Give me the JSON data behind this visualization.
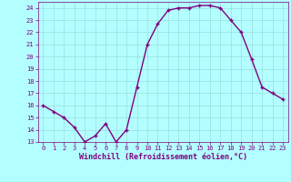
{
  "x": [
    0,
    1,
    2,
    3,
    4,
    5,
    6,
    7,
    8,
    9,
    10,
    11,
    12,
    13,
    14,
    15,
    16,
    17,
    18,
    19,
    20,
    21,
    22,
    23
  ],
  "y": [
    16,
    15.5,
    15,
    14.2,
    13,
    13.5,
    14.5,
    13,
    14,
    17.5,
    21,
    22.7,
    23.8,
    24,
    24,
    24.2,
    24.2,
    24,
    23,
    22,
    19.8,
    17.5,
    17,
    16.5
  ],
  "line_color": "#800080",
  "marker": "+",
  "marker_color": "#800080",
  "bg_color": "#b3ffff",
  "grid_color": "#99dddd",
  "xlabel": "Windchill (Refroidissement éolien,°C)",
  "ylim": [
    13,
    24.5
  ],
  "xlim": [
    -0.5,
    23.5
  ],
  "yticks": [
    13,
    14,
    15,
    16,
    17,
    18,
    19,
    20,
    21,
    22,
    23,
    24
  ],
  "xticks": [
    0,
    1,
    2,
    3,
    4,
    5,
    6,
    7,
    8,
    9,
    10,
    11,
    12,
    13,
    14,
    15,
    16,
    17,
    18,
    19,
    20,
    21,
    22,
    23
  ],
  "axis_fontsize": 6,
  "tick_fontsize": 5,
  "line_width": 1.0,
  "marker_size": 3.5
}
